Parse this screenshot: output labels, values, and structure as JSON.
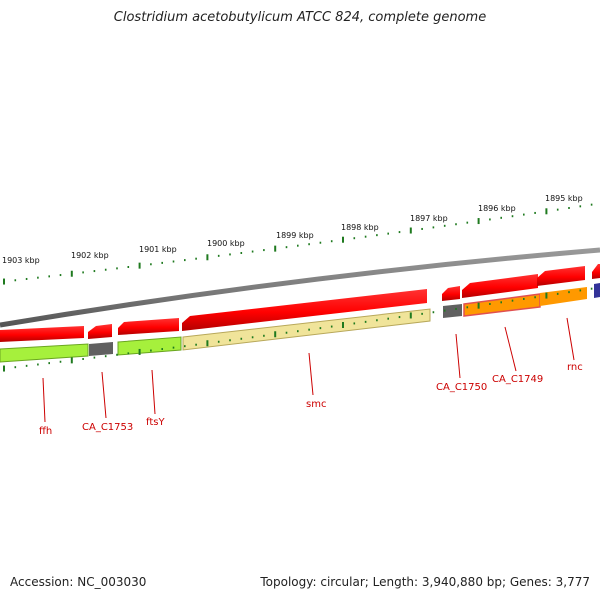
{
  "title": "Clostridium acetobutylicum ATCC 824, complete genome",
  "accession": "Accession: NC_003030",
  "summary": "Topology: circular; Length: 3,940,880 bp; Genes: 3,777",
  "ticks": [
    "1903 kbp",
    "1902 kbp",
    "1901 kbp",
    "1900 kbp",
    "1899 kbp",
    "1898 kbp",
    "1897 kbp",
    "1896 kbp",
    "1895 kbp"
  ],
  "gene_labels": [
    "ffh",
    "CA_C1753",
    "ftsY",
    "smc",
    "CA_C1750",
    "CA_C1749",
    "rnc"
  ],
  "colors": {
    "backbone": "#808080",
    "cds_arrow": "#ff0000",
    "tick": "#1f7a1f",
    "label": "#cc0000",
    "ffh_band": "#a6f03c",
    "ftsY_band": "#a6f03c",
    "smc_band": "#f0e49a",
    "grey_band": "#606060",
    "orange_band": "#ff9900",
    "blue_band": "#333399"
  }
}
